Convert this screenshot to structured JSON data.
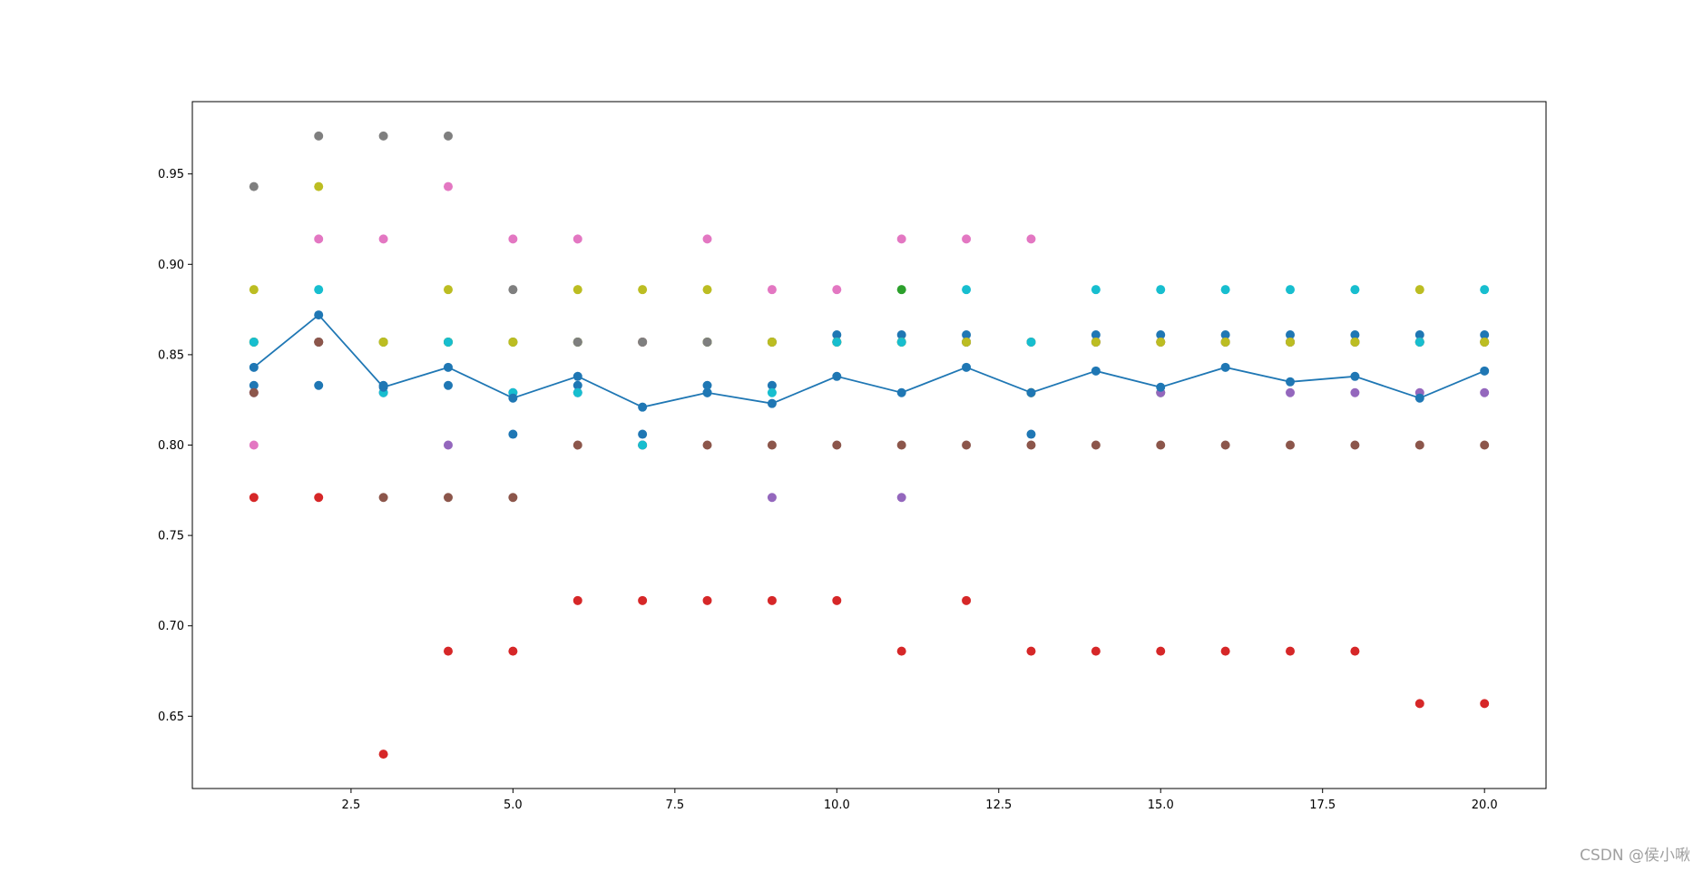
{
  "chart_data": {
    "type": "scatter",
    "title": "",
    "xlabel": "",
    "ylabel": "",
    "xlim": [
      0.05,
      20.95
    ],
    "ylim": [
      0.61,
      0.99
    ],
    "x_ticks": [
      2.5,
      5.0,
      7.5,
      10.0,
      12.5,
      15.0,
      17.5,
      20.0
    ],
    "x_tick_labels": [
      "2.5",
      "5.0",
      "7.5",
      "10.0",
      "12.5",
      "15.0",
      "17.5",
      "20.0"
    ],
    "y_ticks": [
      0.65,
      0.7,
      0.75,
      0.8,
      0.85,
      0.9,
      0.95
    ],
    "y_tick_labels": [
      "0.65",
      "0.70",
      "0.75",
      "0.80",
      "0.85",
      "0.90",
      "0.95"
    ],
    "grid": false,
    "legend": false,
    "x": [
      1,
      2,
      3,
      4,
      5,
      6,
      7,
      8,
      9,
      10,
      11,
      12,
      13,
      14,
      15,
      16,
      17,
      18,
      19,
      20
    ],
    "point_series": [
      {
        "color": "#1f77b4",
        "values": [
          0.833,
          0.833,
          0.833,
          0.833,
          0.806,
          0.833,
          0.806,
          0.833,
          0.833,
          0.861,
          0.861,
          0.861,
          0.806,
          0.861,
          0.861,
          0.861,
          0.861,
          0.861,
          0.861,
          0.861
        ]
      },
      {
        "color": "#ff7f0e",
        "values": [
          0.857,
          0.857,
          0.857,
          0.857,
          0.857,
          0.857,
          0.857,
          0.857,
          0.857,
          0.857,
          0.857,
          0.857,
          0.857,
          0.857,
          0.857,
          0.857,
          0.857,
          0.857,
          0.857,
          0.857
        ]
      },
      {
        "color": "#2ca02c",
        "values": [
          0.857,
          0.857,
          0.857,
          0.857,
          0.857,
          0.857,
          0.857,
          0.857,
          0.857,
          0.857,
          0.886,
          0.857,
          0.829,
          0.857,
          0.829,
          0.857,
          0.857,
          0.857,
          0.857,
          0.857
        ]
      },
      {
        "color": "#d62728",
        "values": [
          0.771,
          0.771,
          0.629,
          0.686,
          0.686,
          0.714,
          0.714,
          0.714,
          0.714,
          0.714,
          0.686,
          0.714,
          0.686,
          0.686,
          0.686,
          0.686,
          0.686,
          0.686,
          0.657,
          0.657
        ]
      },
      {
        "color": "#9467bd",
        "values": [
          0.829,
          0.857,
          0.829,
          0.8,
          0.829,
          0.829,
          0.8,
          0.829,
          0.771,
          0.857,
          0.771,
          0.857,
          0.829,
          0.857,
          0.829,
          0.857,
          0.829,
          0.829,
          0.829,
          0.829
        ]
      },
      {
        "color": "#8c564b",
        "values": [
          0.829,
          0.857,
          0.771,
          0.771,
          0.771,
          0.8,
          0.8,
          0.8,
          0.8,
          0.8,
          0.8,
          0.8,
          0.8,
          0.8,
          0.8,
          0.8,
          0.8,
          0.8,
          0.8,
          0.8
        ]
      },
      {
        "color": "#e377c2",
        "values": [
          0.8,
          0.914,
          0.914,
          0.943,
          0.914,
          0.914,
          0.857,
          0.914,
          0.886,
          0.886,
          0.914,
          0.914,
          0.914,
          0.857,
          0.857,
          0.857,
          0.857,
          0.857,
          0.857,
          0.857
        ]
      },
      {
        "color": "#7f7f7f",
        "values": [
          0.943,
          0.971,
          0.971,
          0.971,
          0.886,
          0.857,
          0.857,
          0.857,
          0.857,
          0.857,
          0.857,
          0.857,
          0.857,
          0.857,
          0.857,
          0.857,
          0.857,
          0.857,
          0.857,
          0.857
        ]
      },
      {
        "color": "#bcbd22",
        "values": [
          0.886,
          0.943,
          0.857,
          0.886,
          0.857,
          0.886,
          0.886,
          0.886,
          0.857,
          0.857,
          0.857,
          0.857,
          0.829,
          0.857,
          0.857,
          0.857,
          0.857,
          0.857,
          0.886,
          0.857
        ]
      },
      {
        "color": "#17becf",
        "values": [
          0.857,
          0.886,
          0.829,
          0.857,
          0.829,
          0.829,
          0.8,
          0.829,
          0.829,
          0.857,
          0.857,
          0.886,
          0.857,
          0.886,
          0.886,
          0.886,
          0.886,
          0.886,
          0.857,
          0.886
        ]
      }
    ],
    "mean_line": {
      "color": "#1f77b4",
      "values": [
        0.843,
        0.872,
        0.832,
        0.843,
        0.826,
        0.838,
        0.821,
        0.829,
        0.823,
        0.838,
        0.829,
        0.843,
        0.829,
        0.841,
        0.832,
        0.843,
        0.835,
        0.838,
        0.826,
        0.841
      ]
    }
  },
  "watermark": "CSDN @侯小啾"
}
